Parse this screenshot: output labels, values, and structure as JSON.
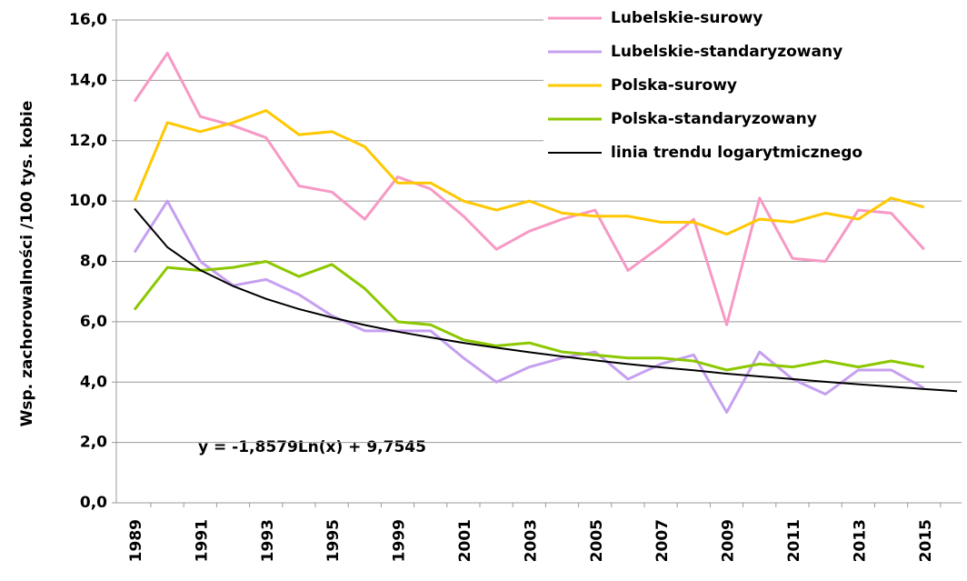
{
  "chart_data": {
    "type": "line",
    "y_label": "Wsp. zachorowalności /100 tys. kobie",
    "annotation": "y = -1,8579Ln(x) + 9,7545",
    "categories": [
      "1989",
      null,
      "1991",
      null,
      "1993",
      null,
      "1995",
      null,
      "1999",
      null,
      "2001",
      null,
      "2003",
      null,
      "2005",
      null,
      "2007",
      null,
      "2009",
      null,
      "2011",
      null,
      "2013",
      null,
      "2015",
      null
    ],
    "series": [
      {
        "name": "Lubelskie-surowy",
        "color": "#f799c5",
        "values": [
          13.3,
          14.9,
          12.8,
          12.5,
          12.1,
          10.5,
          10.3,
          9.4,
          10.8,
          10.4,
          9.5,
          8.4,
          9.0,
          9.4,
          9.7,
          7.7,
          8.5,
          9.4,
          5.9,
          10.1,
          8.1,
          8.0,
          9.7,
          9.6,
          8.4,
          null
        ]
      },
      {
        "name": "Lubelskie-standaryzowany",
        "color": "#c6a0f0",
        "values": [
          8.3,
          10.0,
          8.0,
          7.2,
          7.4,
          6.9,
          6.2,
          5.7,
          5.7,
          5.7,
          4.8,
          4.0,
          4.5,
          4.8,
          5.0,
          4.1,
          4.6,
          4.9,
          3.0,
          5.0,
          4.1,
          3.6,
          4.4,
          4.4,
          3.8,
          null
        ]
      },
      {
        "name": "Polska-surowy",
        "color": "#ffc800",
        "values": [
          10.0,
          12.6,
          12.3,
          12.6,
          13.0,
          12.2,
          12.3,
          11.8,
          10.6,
          10.6,
          10.0,
          9.7,
          10.0,
          9.6,
          9.5,
          9.5,
          9.3,
          9.3,
          8.9,
          9.4,
          9.3,
          9.6,
          9.4,
          10.1,
          9.8,
          null
        ]
      },
      {
        "name": "Polska-standaryzowany",
        "color": "#8cc800",
        "values": [
          6.4,
          7.8,
          7.7,
          7.8,
          8.0,
          7.5,
          7.9,
          7.1,
          6.0,
          5.9,
          5.4,
          5.2,
          5.3,
          5.0,
          4.9,
          4.8,
          4.8,
          4.7,
          4.4,
          4.6,
          4.5,
          4.7,
          4.5,
          4.7,
          4.5,
          null
        ]
      },
      {
        "name": "linia trendu logarytmicznego",
        "color": "#000000",
        "values": [
          9.75,
          8.47,
          7.71,
          7.18,
          6.76,
          6.42,
          6.14,
          5.89,
          5.67,
          5.48,
          5.3,
          5.14,
          4.99,
          4.85,
          4.72,
          4.6,
          4.49,
          4.39,
          4.28,
          4.19,
          4.1,
          4.01,
          3.93,
          3.85,
          3.77,
          3.7
        ]
      }
    ],
    "ylim": [
      0,
      16
    ],
    "yticks": [
      {
        "value": 0,
        "label": "0,0"
      },
      {
        "value": 2,
        "label": "2,0"
      },
      {
        "value": 4,
        "label": "4,0"
      },
      {
        "value": 6,
        "label": "6,0"
      },
      {
        "value": 8,
        "label": "8,0"
      },
      {
        "value": 10,
        "label": "10,0"
      },
      {
        "value": 12,
        "label": "12,0"
      },
      {
        "value": 14,
        "label": "14,0"
      },
      {
        "value": 16,
        "label": "16,0"
      }
    ],
    "grid": true
  }
}
